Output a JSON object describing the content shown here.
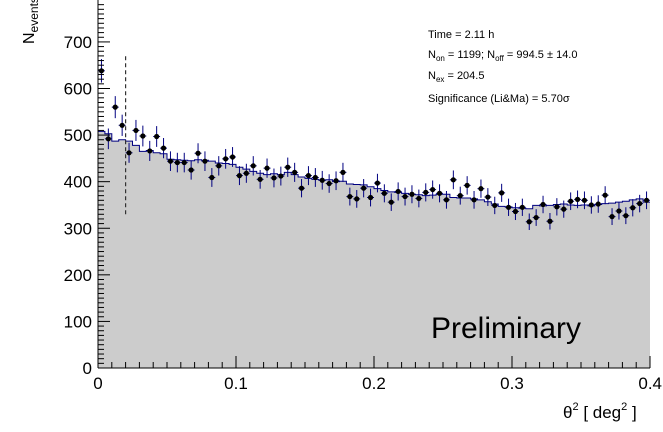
{
  "chart_data": {
    "type": "histogram",
    "xlabel": "θ² [ deg² ]",
    "xlabel_parts": {
      "theta": "θ",
      "sup1": "2",
      "mid": " [ deg",
      "sup2": "2",
      "end": " ]"
    },
    "ylabel": "N_events",
    "ylabel_parts": {
      "main": "N",
      "sub": "events"
    },
    "xlim": [
      0,
      0.4
    ],
    "ylim": [
      0,
      790
    ],
    "x_ticks": [
      0,
      0.1,
      0.2,
      0.3,
      0.4
    ],
    "x_tick_labels": [
      "0",
      "0.1",
      "0.2",
      "0.3",
      "0.4"
    ],
    "y_ticks": [
      0,
      100,
      200,
      300,
      400,
      500,
      600,
      700
    ],
    "y_tick_labels": [
      "0",
      "100",
      "200",
      "300",
      "400",
      "500",
      "600",
      "700"
    ],
    "bin_width": 0.005,
    "theta2_cut": 0.02,
    "cut_line_range": [
      330,
      670
    ],
    "series": [
      {
        "kind": "background",
        "fill": "#cccccc",
        "line": "#000080",
        "values": [
          508,
          503,
          487,
          490,
          487,
          478,
          465,
          467,
          462,
          460,
          448,
          447,
          446,
          445,
          447,
          446,
          444,
          440,
          439,
          437,
          431,
          427,
          422,
          418,
          415,
          417,
          415,
          420,
          415,
          410,
          407,
          405,
          403,
          404,
          400,
          401,
          395,
          394,
          393,
          389,
          385,
          381,
          378,
          377,
          375,
          373,
          372,
          370,
          371,
          373,
          373,
          366,
          365,
          365,
          363,
          361,
          357,
          352,
          347,
          346,
          344,
          343,
          342,
          349,
          348,
          349,
          351,
          352,
          350,
          349,
          350,
          348,
          351,
          353,
          354,
          356,
          358,
          361,
          363,
          356
        ]
      },
      {
        "kind": "on",
        "color": "#000000",
        "values": [
          638,
          492,
          560,
          521,
          462,
          510,
          498,
          466,
          497,
          472,
          444,
          441,
          441,
          425,
          461,
          444,
          409,
          434,
          449,
          453,
          413,
          418,
          434,
          405,
          429,
          408,
          412,
          431,
          420,
          386,
          413,
          409,
          403,
          396,
          402,
          420,
          368,
          363,
          386,
          366,
          397,
          375,
          356,
          379,
          368,
          373,
          364,
          377,
          383,
          375,
          361,
          404,
          370,
          392,
          361,
          385,
          367,
          349,
          376,
          345,
          336,
          345,
          314,
          323,
          351,
          315,
          346,
          341,
          358,
          362,
          360,
          350,
          352,
          371,
          325,
          337,
          327,
          344,
          353,
          360
        ]
      }
    ]
  },
  "stats_box": {
    "time": {
      "label": "Time = 2.11 h"
    },
    "non": {
      "pre1": "N",
      "sub1": "on",
      "mid": " = 1199; N",
      "sub2": "off",
      "post": " = 994.5 ± 14.0"
    },
    "nex": {
      "pre": "N",
      "sub": "ex",
      "post": " = 204.5"
    },
    "sig": {
      "label": "Significance (Li&Ma) = 5.70",
      "sigma": "σ"
    }
  },
  "watermark": "Preliminary"
}
